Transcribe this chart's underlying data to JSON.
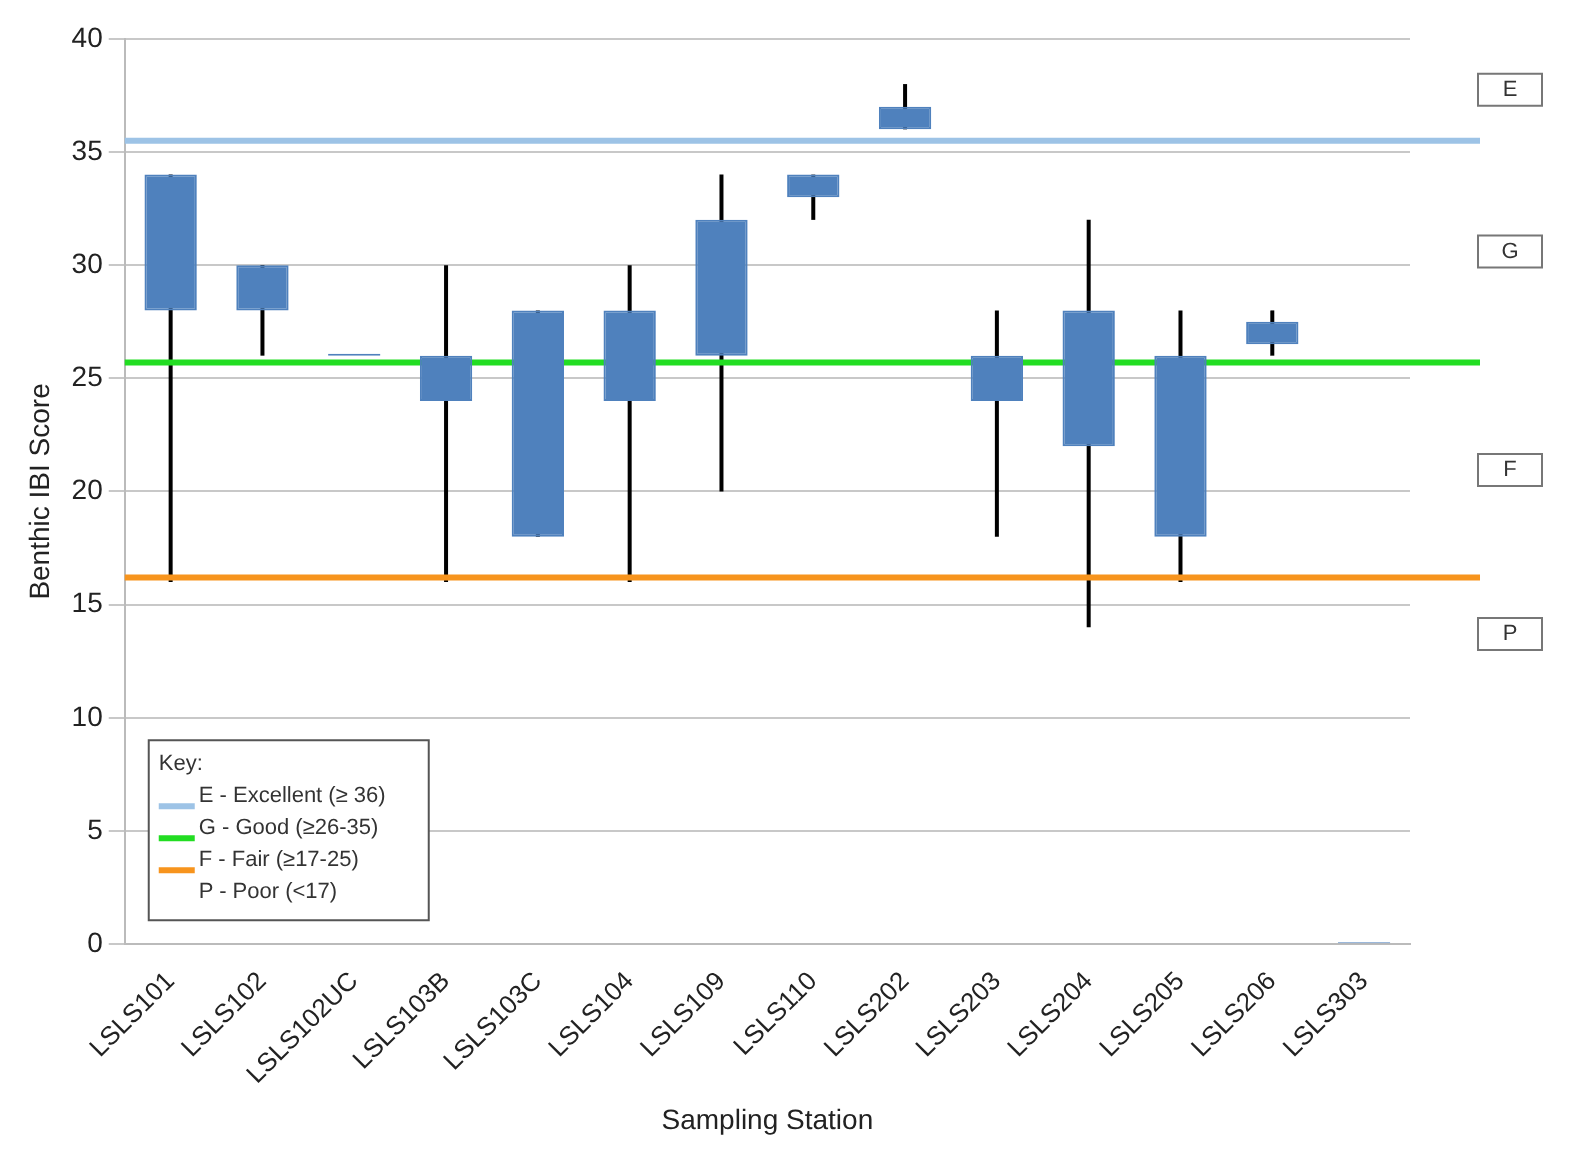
{
  "chart_data": {
    "type": "candlestick",
    "xlabel": "Sampling Station",
    "ylabel": "Benthic IBI Score",
    "categories": [
      "LSLS101",
      "LSLS102",
      "LSLS102UC",
      "LSLS103B",
      "LSLS103C",
      "LSLS104",
      "LSLS109",
      "LSLS110",
      "LSLS202",
      "LSLS203",
      "LSLS204",
      "LSLS205",
      "LSLS206",
      "LSLS303"
    ],
    "ohlc": [
      [
        28,
        34,
        16,
        34
      ],
      [
        28,
        30,
        26,
        30
      ],
      [
        26,
        26,
        26,
        26
      ],
      [
        24,
        30,
        16,
        26
      ],
      [
        18,
        28,
        18,
        28
      ],
      [
        24,
        30,
        16,
        28
      ],
      [
        26,
        34,
        20,
        32
      ],
      [
        33,
        34,
        32,
        34
      ],
      [
        36,
        38,
        36,
        37
      ],
      [
        24,
        28,
        18,
        26
      ],
      [
        22,
        32,
        14,
        28
      ],
      [
        18,
        28,
        16,
        26
      ],
      [
        26.5,
        28,
        26,
        27.5
      ],
      [
        0,
        0,
        0,
        0
      ]
    ],
    "color": "#4f81bd",
    "ylim": [
      0,
      40
    ],
    "yticks": [
      0,
      5,
      10,
      15,
      20,
      25,
      30,
      35,
      40
    ],
    "grid": "y",
    "legend": "bottom left",
    "legend_title": "Key:",
    "ref_lines": [
      {
        "axis": "y",
        "value": 35.5,
        "label": "E - Excellent (≥ 36)",
        "color": "#9dc3e6"
      },
      {
        "axis": "y",
        "value": 25.7,
        "label": "G - Good (≥26-35)",
        "color": "#22dd22"
      },
      {
        "axis": "y",
        "value": 16.2,
        "label": "F - Fair (≥17-25)",
        "color": "#f7941d"
      }
    ],
    "annotations": [
      "E",
      "G",
      "F",
      "P",
      "P - Poor (<17)"
    ]
  }
}
